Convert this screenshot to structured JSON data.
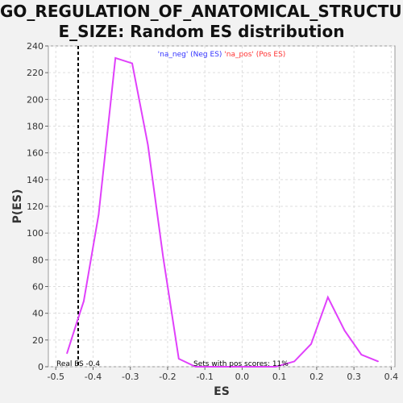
{
  "chart_data": {
    "type": "line",
    "title": "GO_REGULATION_OF_ANATOMICAL_STRUCTURE_SIZE: Random ES distribution",
    "title_display": "GO_REGULATION_OF_ANATOMICAL_STRUCTUR\nE_SIZE: Random ES distribution",
    "xlabel": "ES",
    "ylabel": "P(ES)",
    "xlim": [
      -0.52,
      0.41
    ],
    "ylim": [
      0,
      240
    ],
    "xticks": [
      -0.5,
      -0.4,
      -0.3,
      -0.2,
      -0.1,
      0.0,
      0.1,
      0.2,
      0.3,
      0.4
    ],
    "xtick_labels": [
      "-0.5",
      "-0.4",
      "-0.3",
      "-0.2",
      "-0.1",
      "0.0",
      "0.1",
      "0.2",
      "0.3",
      "0.4"
    ],
    "yticks": [
      0,
      20,
      40,
      60,
      80,
      100,
      120,
      140,
      160,
      180,
      200,
      220,
      240
    ],
    "ytick_labels": [
      "0",
      "20",
      "40",
      "60",
      "80",
      "100",
      "120",
      "140",
      "160",
      "180",
      "200",
      "220",
      "240"
    ],
    "grid": true,
    "legend": {
      "placement": "top-center",
      "neg_text": "'na_neg' (Neg ES)",
      "pos_text": "'na_pos' (Pos ES)",
      "neg_color": "#3333ff",
      "pos_color": "#ff3333"
    },
    "series": [
      {
        "color": "#e040fb",
        "x": [
          -0.47,
          -0.445,
          -0.425,
          -0.385,
          -0.34,
          -0.295,
          -0.253,
          -0.212,
          -0.17,
          -0.125,
          -0.085,
          -0.04,
          0.0,
          0.045,
          0.09,
          0.14,
          0.185,
          0.23,
          0.275,
          0.32,
          0.365
        ],
        "y": [
          10,
          32,
          49,
          114,
          231,
          227,
          166,
          82,
          6,
          0,
          0,
          0,
          0,
          0,
          0,
          4,
          17,
          52,
          27,
          9,
          4
        ]
      }
    ],
    "real_es": {
      "value": -0.44,
      "label": "Real ES -0.4"
    },
    "footer_note": "Sets with pos scores: 11%"
  }
}
